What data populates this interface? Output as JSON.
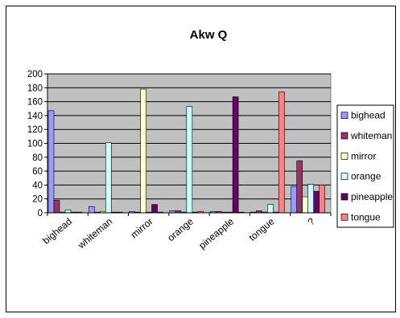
{
  "chart_data": {
    "type": "bar",
    "title": "Akw Q",
    "xlabel": "",
    "ylabel": "",
    "ylim": [
      0,
      200
    ],
    "yticks": [
      0,
      20,
      40,
      60,
      80,
      100,
      120,
      140,
      160,
      180,
      200
    ],
    "grid": "horizontal",
    "legend_position": "right",
    "plot_background": "#c0c0c0",
    "categories": [
      "bighead",
      "whiteman",
      "mirror",
      "orange",
      "pineapple",
      "tongue",
      "?"
    ],
    "series": [
      {
        "name": "bighead",
        "color": "#9999ff",
        "values": [
          147,
          9,
          2,
          3,
          2,
          1,
          38
        ]
      },
      {
        "name": "whiteman",
        "color": "#993366",
        "values": [
          18,
          1,
          1,
          3,
          2,
          3,
          75
        ]
      },
      {
        "name": "mirror",
        "color": "#ffffcc",
        "values": [
          1,
          2,
          178,
          1,
          1,
          1,
          23
        ]
      },
      {
        "name": "orange",
        "color": "#ccffff",
        "values": [
          4,
          101,
          1,
          153,
          1,
          12,
          41
        ]
      },
      {
        "name": "pineapple",
        "color": "#660066",
        "values": [
          1,
          1,
          12,
          1,
          167,
          1,
          31
        ]
      },
      {
        "name": "tongue",
        "color": "#ff8080",
        "values": [
          1,
          1,
          1,
          2,
          1,
          174,
          40
        ]
      }
    ]
  }
}
